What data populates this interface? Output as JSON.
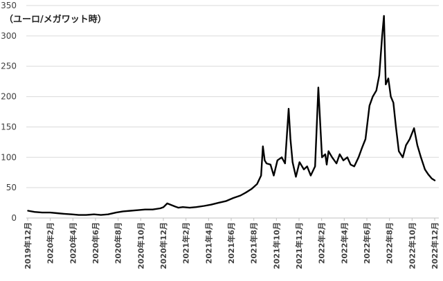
{
  "chart_data": {
    "type": "line",
    "title": "",
    "ylabel": "（ユーロ/メガワット時）",
    "xlabel": "",
    "ylim": [
      0,
      350
    ],
    "yticks": [
      0,
      50,
      100,
      150,
      200,
      250,
      300,
      350
    ],
    "grid": "horizontal",
    "legend": "none",
    "line_color": "#000000",
    "x_range": [
      "2019-12",
      "2022-12"
    ],
    "x_tick_labels": [
      "2019年12月",
      "2020年2月",
      "2020年4月",
      "2020年6月",
      "2020年8月",
      "2020年10月",
      "2020年12月",
      "2021年2月",
      "2021年4月",
      "2021年6月",
      "2021年8月",
      "2021年10月",
      "2021年12月",
      "2022年2月",
      "2022年4月",
      "2022年6月",
      "2022年8月",
      "2022年10月",
      "2022年12月"
    ],
    "series": [
      {
        "name": "",
        "x": [
          "2019-12-02",
          "2019-12-20",
          "2020-01-10",
          "2020-02-01",
          "2020-02-20",
          "2020-03-10",
          "2020-04-01",
          "2020-04-20",
          "2020-05-10",
          "2020-06-01",
          "2020-06-20",
          "2020-07-10",
          "2020-08-01",
          "2020-08-20",
          "2020-09-10",
          "2020-10-01",
          "2020-10-20",
          "2020-11-10",
          "2020-12-01",
          "2020-12-10",
          "2020-12-20",
          "2021-01-10",
          "2021-01-20",
          "2021-02-01",
          "2021-02-20",
          "2021-03-10",
          "2021-04-01",
          "2021-04-20",
          "2021-05-10",
          "2021-06-01",
          "2021-06-20",
          "2021-07-10",
          "2021-07-25",
          "2021-08-10",
          "2021-08-25",
          "2021-09-05",
          "2021-09-10",
          "2021-09-15",
          "2021-09-20",
          "2021-10-01",
          "2021-10-10",
          "2021-10-20",
          "2021-11-01",
          "2021-11-10",
          "2021-11-20",
          "2021-11-25",
          "2021-12-01",
          "2021-12-10",
          "2021-12-20",
          "2022-01-01",
          "2022-01-10",
          "2022-01-20",
          "2022-02-01",
          "2022-02-10",
          "2022-02-20",
          "2022-03-01",
          "2022-03-05",
          "2022-03-10",
          "2022-03-20",
          "2022-04-01",
          "2022-04-10",
          "2022-04-20",
          "2022-05-01",
          "2022-05-10",
          "2022-05-20",
          "2022-06-01",
          "2022-06-10",
          "2022-06-20",
          "2022-07-01",
          "2022-07-10",
          "2022-07-20",
          "2022-07-28",
          "2022-08-05",
          "2022-08-10",
          "2022-08-15",
          "2022-08-22",
          "2022-08-29",
          "2022-09-05",
          "2022-09-12",
          "2022-09-20",
          "2022-10-01",
          "2022-10-10",
          "2022-10-20",
          "2022-11-01",
          "2022-11-10",
          "2022-11-20",
          "2022-12-01",
          "2022-12-10",
          "2022-12-20",
          "2022-12-28"
        ],
        "y": [
          12,
          10,
          9,
          9,
          8,
          7,
          6,
          5,
          5,
          6,
          5,
          6,
          9,
          11,
          12,
          13,
          14,
          14,
          16,
          18,
          24,
          19,
          17,
          18,
          17,
          18,
          20,
          22,
          25,
          28,
          33,
          37,
          42,
          48,
          56,
          70,
          118,
          95,
          90,
          88,
          70,
          95,
          100,
          90,
          180,
          130,
          92,
          68,
          92,
          80,
          85,
          70,
          85,
          215,
          100,
          105,
          88,
          110,
          100,
          90,
          105,
          95,
          100,
          88,
          85,
          100,
          115,
          130,
          185,
          200,
          210,
          235,
          300,
          333,
          220,
          230,
          200,
          190,
          150,
          110,
          100,
          120,
          130,
          148,
          120,
          100,
          80,
          72,
          65,
          62
        ]
      }
    ]
  }
}
